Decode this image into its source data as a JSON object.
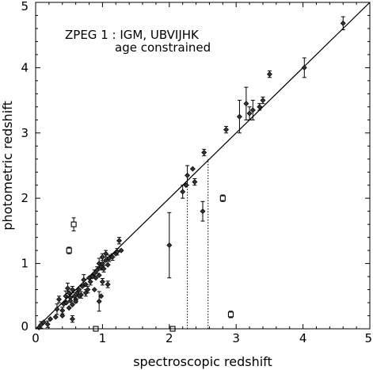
{
  "chart_data": {
    "type": "scatter",
    "title": "",
    "annotations": [
      "ZPEG 1 : IGM, UBVIJHK",
      "age constrained"
    ],
    "xlabel": "spectroscopic redshift",
    "ylabel": "photometric redshift",
    "xlim": [
      0,
      5
    ],
    "ylim": [
      0,
      5
    ],
    "xticks": [
      "0",
      "1",
      "2",
      "3",
      "4",
      "5"
    ],
    "yticks": [
      "0",
      "1",
      "2",
      "3",
      "4",
      "5"
    ],
    "grid": false,
    "lines": [
      {
        "style": "solid",
        "x": [
          0,
          5
        ],
        "y": [
          0,
          5.13
        ]
      },
      {
        "style": "dotted",
        "x": [
          0,
          5
        ],
        "y": [
          0,
          5.22
        ]
      }
    ],
    "vertical_dotted_lines": [
      {
        "x": 2.27,
        "y_from": 0,
        "y_to": 2.38
      },
      {
        "x": 2.58,
        "y_from": 0,
        "y_to": 2.6
      }
    ],
    "diamond_points": [
      [
        0.05,
        0.02,
        0
      ],
      [
        0.08,
        0.06,
        0.05
      ],
      [
        0.12,
        0.1,
        0
      ],
      [
        0.18,
        0.07,
        0.05
      ],
      [
        0.22,
        0.15,
        0
      ],
      [
        0.3,
        0.18,
        0
      ],
      [
        0.32,
        0.3,
        0.08
      ],
      [
        0.35,
        0.45,
        0.05
      ],
      [
        0.4,
        0.28,
        0.05
      ],
      [
        0.42,
        0.38,
        0
      ],
      [
        0.45,
        0.5,
        0.08
      ],
      [
        0.46,
        0.4,
        0
      ],
      [
        0.48,
        0.62,
        0.08
      ],
      [
        0.5,
        0.55,
        0
      ],
      [
        0.52,
        0.48,
        0.05
      ],
      [
        0.52,
        0.43,
        0
      ],
      [
        0.55,
        0.6,
        0.05
      ],
      [
        0.55,
        0.37,
        0
      ],
      [
        0.58,
        0.5,
        0
      ],
      [
        0.6,
        0.45,
        0.05
      ],
      [
        0.6,
        0.42,
        0
      ],
      [
        0.62,
        0.55,
        0.05
      ],
      [
        0.65,
        0.6,
        0
      ],
      [
        0.68,
        0.52,
        0.05
      ],
      [
        0.7,
        0.65,
        0
      ],
      [
        0.72,
        0.75,
        0.08
      ],
      [
        0.75,
        0.68,
        0
      ],
      [
        0.78,
        0.6,
        0.05
      ],
      [
        0.8,
        0.78,
        0
      ],
      [
        0.82,
        0.72,
        0.05
      ],
      [
        0.85,
        0.8,
        0
      ],
      [
        0.88,
        0.85,
        0.05
      ],
      [
        0.9,
        0.78,
        0
      ],
      [
        0.92,
        0.9,
        0.05
      ],
      [
        0.95,
        0.82,
        0
      ],
      [
        0.95,
        1.0,
        0.08
      ],
      [
        0.98,
        0.95,
        0.05
      ],
      [
        1.0,
        1.0,
        0
      ],
      [
        1.0,
        1.1,
        0.05
      ],
      [
        1.02,
        0.92,
        0.05
      ],
      [
        1.05,
        1.05,
        0
      ],
      [
        1.05,
        1.15,
        0.05
      ],
      [
        1.08,
        0.98,
        0
      ],
      [
        1.1,
        1.08,
        0.05
      ],
      [
        0.95,
        0.42,
        0.15
      ],
      [
        0.98,
        0.5,
        0
      ],
      [
        0.55,
        0.15,
        0.05
      ],
      [
        0.4,
        0.2,
        0
      ],
      [
        1.08,
        0.68,
        0.05
      ],
      [
        1.2,
        1.15,
        0
      ],
      [
        1.25,
        1.35,
        0.05
      ],
      [
        1.22,
        1.18,
        0.05
      ],
      [
        1.28,
        1.2,
        0
      ],
      [
        1.15,
        1.1,
        0.05
      ],
      [
        0.88,
        0.6,
        0
      ],
      [
        0.75,
        0.55,
        0.05
      ],
      [
        1.0,
        0.72,
        0.05
      ],
      [
        0.65,
        0.5,
        0
      ],
      [
        0.5,
        0.32,
        0
      ],
      [
        2.0,
        1.28,
        0.5
      ],
      [
        2.2,
        2.1,
        0.1
      ],
      [
        2.25,
        2.2,
        0
      ],
      [
        2.27,
        2.35,
        0.15
      ],
      [
        2.35,
        2.45,
        0
      ],
      [
        2.38,
        2.25,
        0.05
      ],
      [
        2.5,
        1.8,
        0.15
      ],
      [
        2.52,
        2.7,
        0.05
      ],
      [
        2.85,
        3.05,
        0.05
      ],
      [
        3.05,
        3.25,
        0.25
      ],
      [
        3.15,
        3.45,
        0.25
      ],
      [
        3.2,
        3.3,
        0.1
      ],
      [
        3.25,
        3.35,
        0.15
      ],
      [
        3.35,
        3.4,
        0.05
      ],
      [
        3.4,
        3.5,
        0.05
      ],
      [
        3.5,
        3.9,
        0.05
      ],
      [
        4.02,
        4.0,
        0.15
      ],
      [
        4.6,
        4.68,
        0.1
      ]
    ],
    "square_points": [
      [
        0.5,
        1.2,
        0.05
      ],
      [
        0.57,
        1.6,
        0.1
      ],
      [
        0.9,
        0.0,
        0
      ],
      [
        2.05,
        0.0,
        0
      ],
      [
        2.8,
        2.0,
        0.05
      ],
      [
        2.92,
        0.22,
        0.05
      ]
    ]
  }
}
